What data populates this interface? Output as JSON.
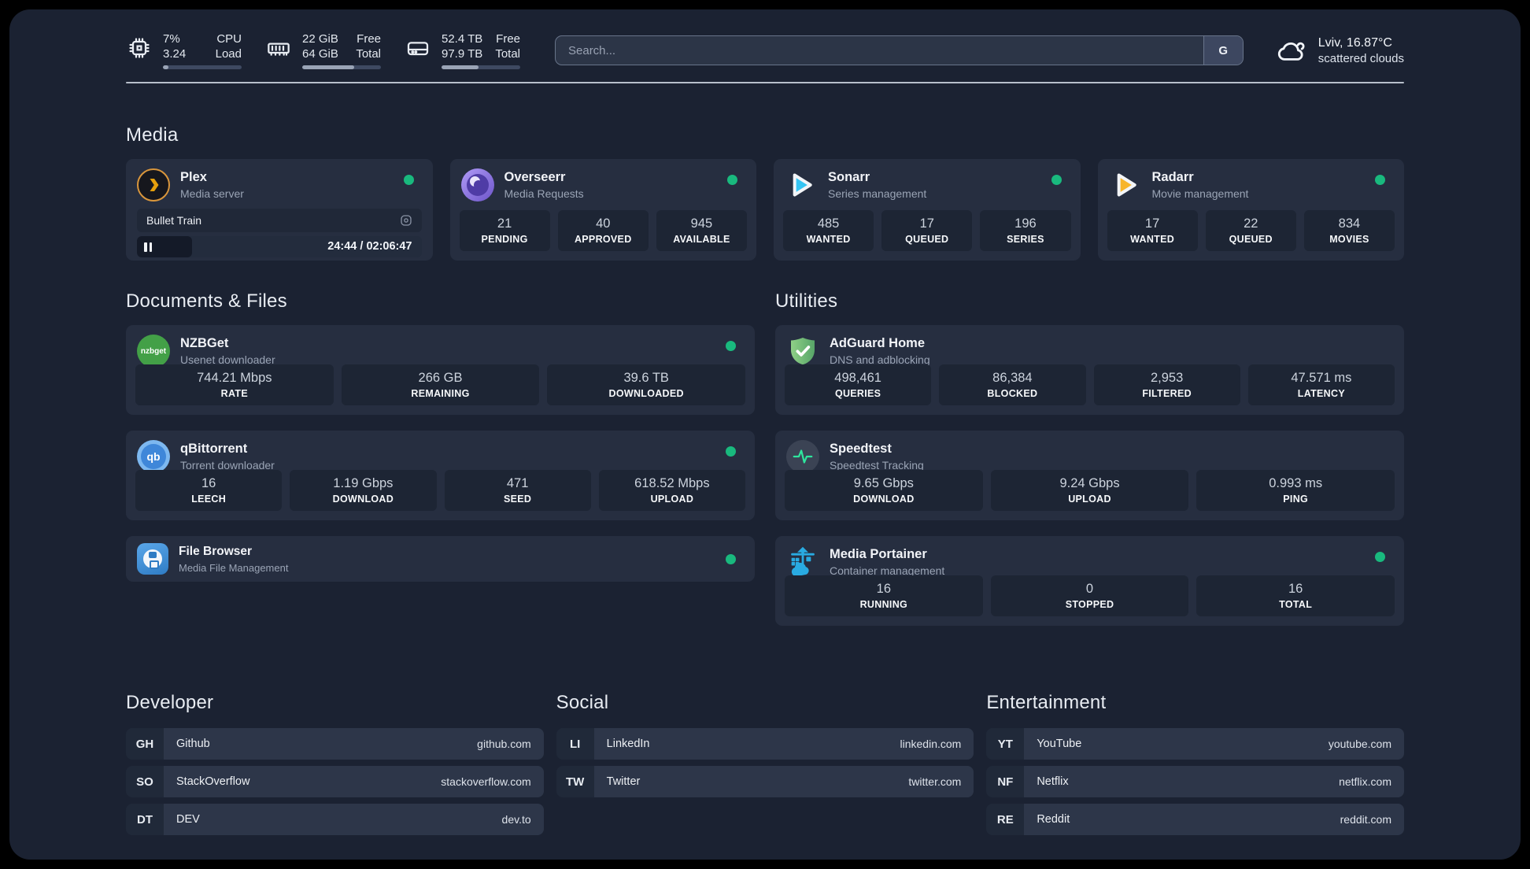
{
  "header": {
    "stats": [
      {
        "icon": "cpu-icon",
        "values": [
          "7%",
          "3.24"
        ],
        "labels": [
          "CPU",
          "Load"
        ],
        "progress_pct": 7
      },
      {
        "icon": "ram-icon",
        "values": [
          "22 GiB",
          "64 GiB"
        ],
        "labels": [
          "Free",
          "Total"
        ],
        "progress_pct": 66
      },
      {
        "icon": "disk-icon",
        "values": [
          "52.4 TB",
          "97.9 TB"
        ],
        "labels": [
          "Free",
          "Total"
        ],
        "progress_pct": 47
      }
    ],
    "search": {
      "placeholder": "Search...",
      "button_label": "G"
    },
    "weather": {
      "location": "Lviv, 16.87°C",
      "condition": "scattered clouds"
    }
  },
  "sections": {
    "media": {
      "title": "Media",
      "cards": {
        "plex": {
          "name": "Plex",
          "desc": "Media server",
          "online": true,
          "player": {
            "title": "Bullet Train",
            "time": "24:44 / 02:06:47",
            "progress_pct": 19.5
          }
        },
        "overseerr": {
          "name": "Overseerr",
          "desc": "Media Requests",
          "online": true,
          "stats": [
            {
              "value": "21",
              "label": "PENDING"
            },
            {
              "value": "40",
              "label": "APPROVED"
            },
            {
              "value": "945",
              "label": "AVAILABLE"
            }
          ]
        },
        "sonarr": {
          "name": "Sonarr",
          "desc": "Series management",
          "online": true,
          "stats": [
            {
              "value": "485",
              "label": "WANTED"
            },
            {
              "value": "17",
              "label": "QUEUED"
            },
            {
              "value": "196",
              "label": "SERIES"
            }
          ]
        },
        "radarr": {
          "name": "Radarr",
          "desc": "Movie management",
          "online": true,
          "stats": [
            {
              "value": "17",
              "label": "WANTED"
            },
            {
              "value": "22",
              "label": "QUEUED"
            },
            {
              "value": "834",
              "label": "MOVIES"
            }
          ]
        }
      }
    },
    "documents": {
      "title": "Documents & Files",
      "cards": {
        "nzbget": {
          "name": "NZBGet",
          "desc": "Usenet downloader",
          "online": true,
          "icon_text": "nzbget",
          "stats": [
            {
              "value": "744.21 Mbps",
              "label": "RATE"
            },
            {
              "value": "266 GB",
              "label": "REMAINING"
            },
            {
              "value": "39.6 TB",
              "label": "DOWNLOADED"
            }
          ]
        },
        "qbittorrent": {
          "name": "qBittorrent",
          "desc": "Torrent downloader",
          "online": true,
          "icon_text": "qb",
          "stats": [
            {
              "value": "16",
              "label": "LEECH"
            },
            {
              "value": "1.19 Gbps",
              "label": "DOWNLOAD"
            },
            {
              "value": "471",
              "label": "SEED"
            },
            {
              "value": "618.52 Mbps",
              "label": "UPLOAD"
            }
          ]
        },
        "filebrowser": {
          "name": "File Browser",
          "desc": "Media File Management",
          "online": true
        }
      }
    },
    "utilities": {
      "title": "Utilities",
      "cards": {
        "adguard": {
          "name": "AdGuard Home",
          "desc": "DNS and adblocking",
          "stats": [
            {
              "value": "498,461",
              "label": "QUERIES"
            },
            {
              "value": "86,384",
              "label": "BLOCKED"
            },
            {
              "value": "2,953",
              "label": "FILTERED"
            },
            {
              "value": "47.571 ms",
              "label": "LATENCY"
            }
          ]
        },
        "speedtest": {
          "name": "Speedtest",
          "desc": "Speedtest Tracking",
          "stats": [
            {
              "value": "9.65 Gbps",
              "label": "DOWNLOAD"
            },
            {
              "value": "9.24 Gbps",
              "label": "UPLOAD"
            },
            {
              "value": "0.993 ms",
              "label": "PING"
            }
          ]
        },
        "portainer": {
          "name": "Media Portainer",
          "desc": "Container management",
          "online": true,
          "stats": [
            {
              "value": "16",
              "label": "RUNNING"
            },
            {
              "value": "0",
              "label": "STOPPED"
            },
            {
              "value": "16",
              "label": "TOTAL"
            }
          ]
        }
      }
    },
    "links": {
      "developer": {
        "title": "Developer",
        "items": [
          {
            "abbr": "GH",
            "name": "Github",
            "url": "github.com"
          },
          {
            "abbr": "SO",
            "name": "StackOverflow",
            "url": "stackoverflow.com"
          },
          {
            "abbr": "DT",
            "name": "DEV",
            "url": "dev.to"
          }
        ]
      },
      "social": {
        "title": "Social",
        "items": [
          {
            "abbr": "LI",
            "name": "LinkedIn",
            "url": "linkedin.com"
          },
          {
            "abbr": "TW",
            "name": "Twitter",
            "url": "twitter.com"
          }
        ]
      },
      "entertainment": {
        "title": "Entertainment",
        "items": [
          {
            "abbr": "YT",
            "name": "YouTube",
            "url": "youtube.com"
          },
          {
            "abbr": "NF",
            "name": "Netflix",
            "url": "netflix.com"
          },
          {
            "abbr": "RE",
            "name": "Reddit",
            "url": "reddit.com"
          }
        ]
      }
    }
  },
  "colors": {
    "status_online": "#19b97e",
    "accent_plex": "#e5a00d",
    "accent_sonarr": "#35c5f4",
    "accent_radarr": "#f7b52c",
    "accent_nzbget": "#43a047",
    "accent_qbittorrent": "#3f87d9",
    "accent_adguard": "#68b77c",
    "accent_speedtest": "#2ee59d",
    "accent_portainer": "#29abe2",
    "accent_overseerr": "#8b75e8"
  }
}
